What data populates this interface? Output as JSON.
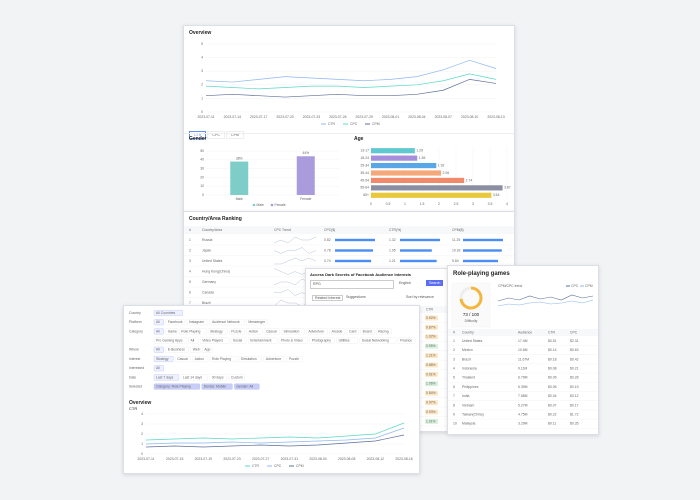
{
  "overview": {
    "title": "Overview",
    "dates": [
      "2023-07-11",
      "2023-07-14",
      "2023-07-17",
      "2023-07-20",
      "2023-07-23",
      "2023-07-26",
      "2023-07-29",
      "2023-08-01",
      "2023-08-04",
      "2023-08-07",
      "2023-08-10",
      "2023-08-13"
    ],
    "series": [
      {
        "name": "CTR",
        "color": "#8cb8f0",
        "values": [
          2.3,
          2.2,
          2.4,
          2.6,
          2.5,
          2.4,
          2.3,
          2.4,
          2.6,
          3.1,
          3.8,
          3.2
        ]
      },
      {
        "name": "CPC",
        "color": "#5ad8c6",
        "values": [
          1.9,
          1.8,
          1.7,
          1.8,
          1.9,
          1.9,
          1.8,
          1.9,
          2.0,
          2.3,
          2.8,
          2.4
        ]
      },
      {
        "name": "CPM",
        "color": "#5d6f9a",
        "values": [
          1.2,
          1.3,
          1.2,
          1.1,
          1.2,
          1.3,
          1.2,
          1.2,
          1.3,
          1.6,
          2.4,
          2.1
        ]
      }
    ],
    "ylim": [
      0,
      5
    ],
    "yticks": [
      0,
      1,
      2,
      3,
      4,
      5
    ]
  },
  "metric_tabs": [
    "CTR",
    "CPC",
    "CPM"
  ],
  "gender": {
    "title": "Gender",
    "categories": [
      "Male",
      "Female"
    ],
    "values": [
      38,
      44
    ],
    "value_labels": [
      "38%",
      "44%"
    ],
    "colors": [
      "#7fcdc8",
      "#a99bdc"
    ],
    "ylim": [
      0,
      50
    ],
    "yticks": [
      0,
      10,
      20,
      30,
      40,
      50
    ]
  },
  "age": {
    "title": "Age",
    "categories": [
      "13-17",
      "18-24",
      "25-34",
      "35-44",
      "45-54",
      "55-64",
      "65+"
    ],
    "values": [
      1.29,
      1.36,
      1.92,
      2.06,
      2.74,
      3.87,
      3.54
    ],
    "colors": [
      "#5fc9d1",
      "#a58fdc",
      "#5aa7e8",
      "#f5a97a",
      "#f08a6a",
      "#8c8fa3",
      "#e9c83c"
    ],
    "xlim": [
      0,
      4
    ],
    "xticks": [
      0,
      0.5,
      1,
      1.5,
      2,
      2.5,
      3,
      3.5,
      4
    ]
  },
  "ranking": {
    "title": "Country/Area Ranking",
    "columns": [
      "#",
      "Country/Area",
      "CPC Trend",
      "CPC($)",
      "CTR(%)",
      "CPM($)"
    ],
    "rows": [
      {
        "rank": 1,
        "country": "Russia",
        "trend": [
          3,
          4,
          3,
          5,
          4,
          4,
          5
        ],
        "cpc": 0.82,
        "ctr": 1.32,
        "cpm": 11.25
      },
      {
        "rank": 2,
        "country": "Japan",
        "trend": [
          4,
          3,
          4,
          4,
          5,
          3,
          4
        ],
        "cpc": 0.78,
        "ctr": 1.05,
        "cpm": 10.92
      },
      {
        "rank": 3,
        "country": "United States",
        "trend": [
          3,
          3,
          4,
          5,
          4,
          5,
          4
        ],
        "cpc": 0.74,
        "ctr": 1.21,
        "cpm": 9.84
      },
      {
        "rank": 4,
        "country": "Hong Kong(China)",
        "trend": [
          5,
          4,
          3,
          4,
          3,
          4,
          3
        ],
        "cpc": 0.7,
        "ctr": 0.98,
        "cpm": 9.66
      },
      {
        "rank": 5,
        "country": "Germany",
        "trend": [
          3,
          4,
          4,
          3,
          5,
          4,
          4
        ],
        "cpc": 0.66,
        "ctr": 1.12,
        "cpm": 8.63
      },
      {
        "rank": 6,
        "country": "Canada",
        "trend": [
          4,
          4,
          5,
          3,
          4,
          3,
          4
        ],
        "cpc": 0.61,
        "ctr": 1.04,
        "cpm": 8.12
      },
      {
        "rank": 7,
        "country": "Brazil",
        "trend": [
          3,
          5,
          4,
          4,
          3,
          4,
          5
        ],
        "cpc": 0.55,
        "ctr": 0.93,
        "cpm": 7.45
      }
    ]
  },
  "search": {
    "title": "Access Dark Secrets of Facebook Audience Interests",
    "query": "RPG",
    "language": "English",
    "button": "Search",
    "tabs": [
      "Related Interest",
      "Suggestions"
    ],
    "sort": "Sort by relevance",
    "columns": [
      "#",
      "Interests",
      "Audience",
      "CPC",
      "CTR"
    ],
    "rows": [
      {
        "cpc": "$1.27",
        "ctr": "0.92%"
      },
      {
        "cpc": "$1.25",
        "ctr": "0.87%"
      },
      {
        "cpc": "$1.18",
        "ctr": "1.02%"
      },
      {
        "cpc": "$1.11",
        "ctr": "0.95%"
      },
      {
        "cpc": "$0.98",
        "ctr": "1.21%"
      },
      {
        "cpc": "$0.96",
        "ctr": "0.88%"
      },
      {
        "cpc": "$0.93",
        "ctr": "0.91%"
      },
      {
        "cpc": "$0.91",
        "ctr": "1.06%"
      },
      {
        "cpc": "$0.89",
        "ctr": "0.84%"
      },
      {
        "cpc": "$0.86",
        "ctr": "0.97%"
      },
      {
        "cpc": "$0.84",
        "ctr": "0.93%"
      },
      {
        "cpc": "$0.81",
        "ctr": "1.01%"
      }
    ]
  },
  "rpg": {
    "title": "Role-playing games",
    "score": 73,
    "score_max": 100,
    "score_label": "73 / 100",
    "difficulty": "Difficulty",
    "trend_title": "CPM/CPC trend",
    "trend": {
      "series": [
        {
          "name": "CPC",
          "color": "#5d6f9a",
          "values": [
            2.1,
            2.4,
            2.2,
            2.6,
            2.3,
            2.5,
            2.2,
            2.7,
            2.4,
            2.6
          ]
        },
        {
          "name": "CPM",
          "color": "#8cb8f0",
          "values": [
            1.6,
            1.8,
            1.7,
            1.9,
            2.0,
            1.8,
            1.9,
            2.1,
            1.9,
            2.2
          ]
        }
      ],
      "ylim": [
        0,
        3
      ]
    },
    "columns": [
      "#",
      "Country",
      "Audience",
      "CTR",
      "CPC"
    ],
    "rows": [
      [
        "1",
        "United States",
        "17.4M",
        "$0.51",
        "$2.31"
      ],
      [
        "2",
        "Mexico",
        "10.6M",
        "$0.14",
        "$0.63"
      ],
      [
        "3",
        "Brazil",
        "11.67M",
        "$0.18",
        "$0.42"
      ],
      [
        "4",
        "Indonesia",
        "9.11M",
        "$0.08",
        "$0.21"
      ],
      [
        "5",
        "Thailand",
        "6.79M",
        "$0.09",
        "$0.28"
      ],
      [
        "6",
        "Philippines",
        "6.39M",
        "$0.06",
        "$0.19"
      ],
      [
        "7",
        "India",
        "7.58M",
        "$0.04",
        "$0.12"
      ],
      [
        "8",
        "Vietnam",
        "5.27M",
        "$0.07",
        "$0.17"
      ],
      [
        "9",
        "Taiwan(China)",
        "4.75M",
        "$0.22",
        "$1.72"
      ],
      [
        "10",
        "Malaysia",
        "3.29M",
        "$0.11",
        "$0.35"
      ]
    ]
  },
  "filters": {
    "rows": [
      {
        "label": "Country",
        "options": [
          "All Countries"
        ]
      },
      {
        "label": "Platform",
        "options": [
          "All",
          "Facebook",
          "Instagram",
          "Audience Network",
          "Messenger"
        ]
      },
      {
        "label": "Category",
        "options": [
          "All",
          "Game",
          "Role Playing",
          "Strategy",
          "Puzzle",
          "Action",
          "Casual",
          "Simulation",
          "Adventure",
          "Arcade",
          "Card",
          "Board",
          "Racing"
        ]
      },
      {
        "label": "",
        "options": [
          "Pro Gaming Apps",
          "All",
          "Video Players",
          "Social",
          "Entertainment",
          "Photo & Video",
          "Photography",
          "Utilities",
          "Social Networking",
          "Shopping",
          "Finance"
        ]
      },
      {
        "label": "Where",
        "options": [
          "All",
          "E-Business",
          "Web",
          "App"
        ]
      },
      {
        "label": "Interest",
        "options": [
          "Strategy",
          "Casual",
          "Action",
          "Role Playing",
          "Simulation",
          "Adventure",
          "Puzzle"
        ]
      },
      {
        "label": "Interested",
        "options": [
          "All"
        ]
      },
      {
        "label": "Date",
        "options": [
          "Last 7 days",
          "Last 14 days",
          "30 days",
          "Custom"
        ]
      },
      {
        "label": "Selected",
        "options": [
          "Category: Role Playing",
          "Device: Mobile",
          "Gender: All"
        ]
      }
    ]
  },
  "overview2": {
    "title": "Overview",
    "y_label": "CTR",
    "dates": [
      "2023-07-11",
      "2023-07-15",
      "2023-07-19",
      "2023-07-23",
      "2023-07-27",
      "2023-07-31",
      "2023-08-04",
      "2023-08-08",
      "2023-08-12",
      "2023-08-16"
    ],
    "series": [
      {
        "name": "CTR",
        "color": "#5ad8c6",
        "values": [
          1.4,
          1.5,
          1.6,
          1.5,
          1.6,
          1.7,
          1.6,
          1.8,
          2.0,
          3.1
        ]
      },
      {
        "name": "CPC",
        "color": "#8cb8f0",
        "values": [
          1.0,
          1.1,
          1.1,
          1.2,
          1.1,
          1.2,
          1.3,
          1.4,
          1.6,
          2.6
        ]
      },
      {
        "name": "CPM",
        "color": "#5d6f9a",
        "values": [
          0.7,
          0.8,
          0.7,
          0.8,
          0.9,
          0.8,
          0.9,
          1.1,
          1.3,
          1.9
        ]
      }
    ],
    "ylim": [
      0,
      4
    ],
    "yticks": [
      0,
      1,
      2,
      3,
      4
    ]
  }
}
